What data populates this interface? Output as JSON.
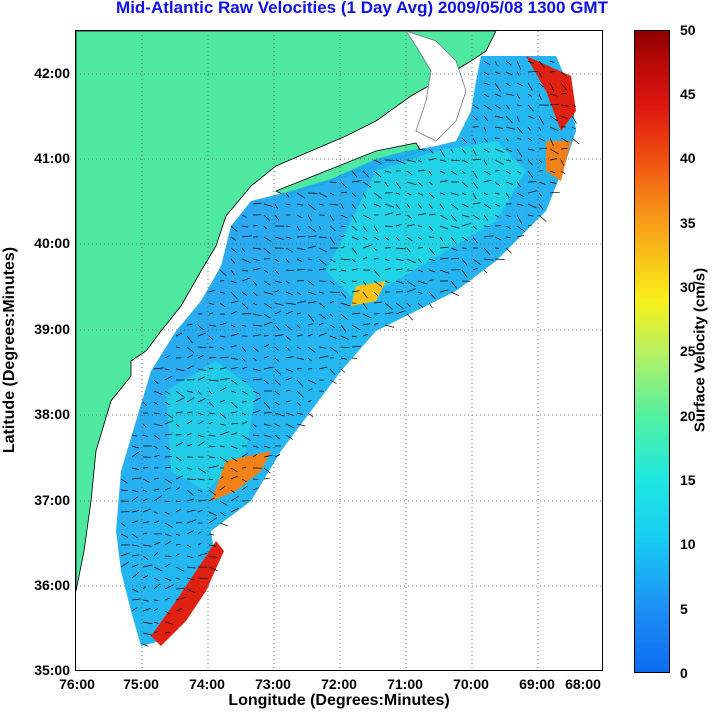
{
  "title": "Mid-Atlantic Raw Velocities (1 Day Avg) 2009/05/08 1300 GMT",
  "x_axis": {
    "label": "Longitude (Degrees:Minutes)",
    "ticks": [
      "76:00",
      "75:00",
      "74:00",
      "73:00",
      "72:00",
      "71:00",
      "70:00",
      "69:00",
      "68:00"
    ]
  },
  "y_axis": {
    "label": "Latitude (Degrees:Minutes)",
    "ticks": [
      "42:00",
      "41:00",
      "40:00",
      "39:00",
      "38:00",
      "37:00",
      "36:00",
      "35:00"
    ]
  },
  "colorbar": {
    "label": "Surface Velocity (cm/s)",
    "ticks": [
      "50",
      "45",
      "40",
      "35",
      "30",
      "25",
      "20",
      "15",
      "10",
      "5",
      "0"
    ],
    "range": [
      0,
      50
    ]
  },
  "colors": {
    "land": "#4ee8a0",
    "title": "#1010e8",
    "water_low": "#2a90f0",
    "water_mid": "#18c8f4",
    "high": "#e02010"
  },
  "map": {
    "extent_lon": [
      -76,
      -68
    ],
    "extent_lat": [
      35,
      42.5
    ],
    "grid": "dotted"
  }
}
